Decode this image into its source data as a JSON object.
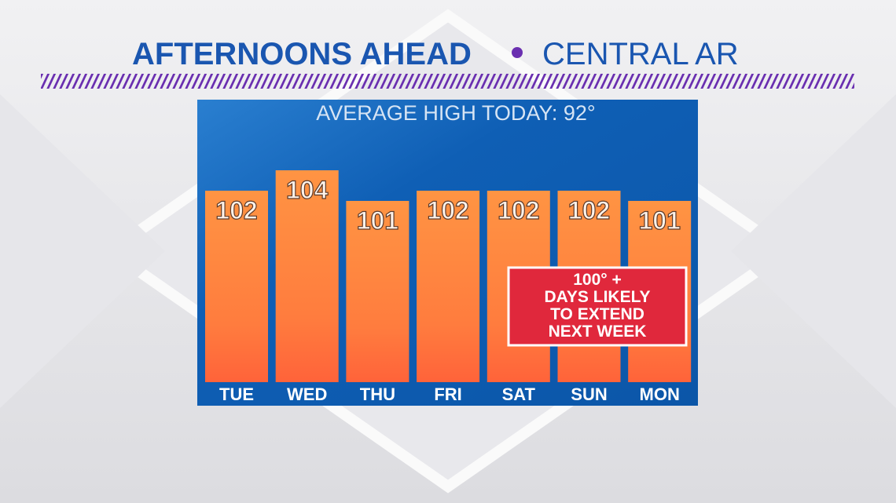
{
  "chart_data": {
    "type": "bar",
    "title": "AFTERNOONS AHEAD",
    "subtitle": "CENTRAL AR",
    "annotation": "AVERAGE HIGH TODAY: 92°",
    "callout": [
      "100° +",
      "DAYS LIKELY",
      "TO EXTEND",
      "NEXT WEEK"
    ],
    "categories": [
      "TUE",
      "WED",
      "THU",
      "FRI",
      "SAT",
      "SUN",
      "MON"
    ],
    "values": [
      102,
      104,
      101,
      102,
      102,
      102,
      101
    ],
    "color": "#ff8a40"
  }
}
